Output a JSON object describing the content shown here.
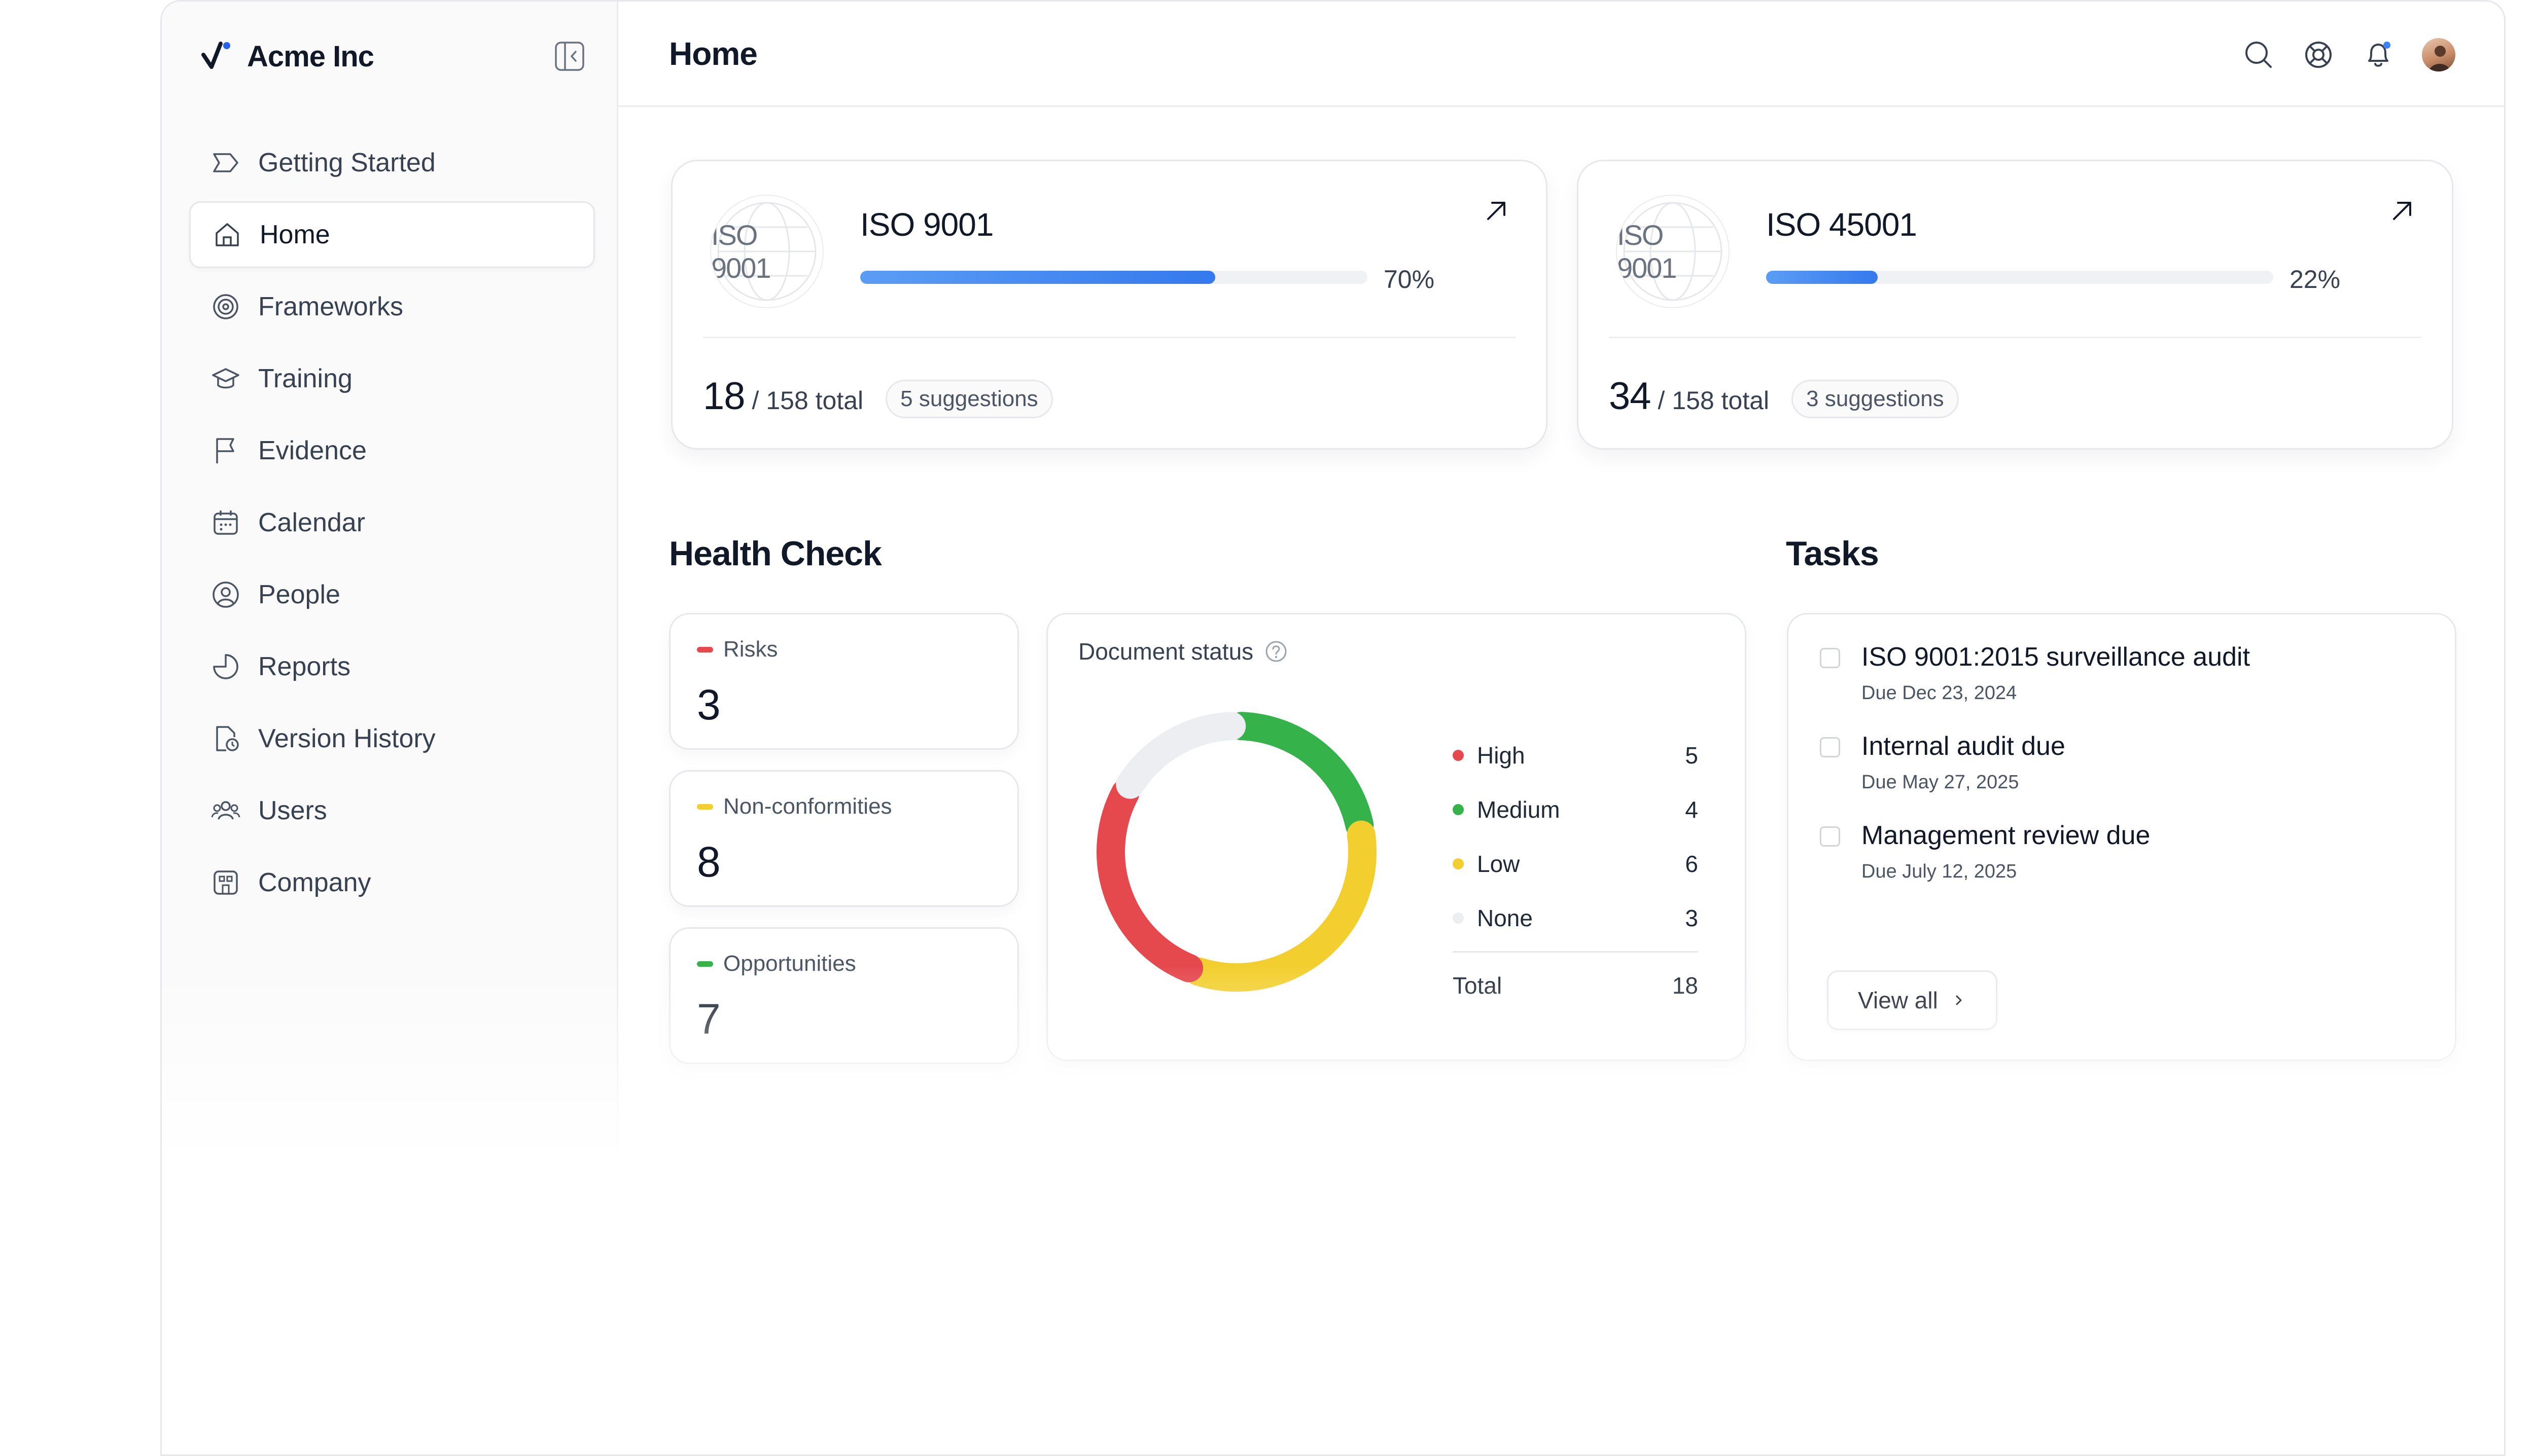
{
  "sidebar": {
    "brand": "Acme Inc",
    "items": [
      {
        "label": "Getting Started",
        "icon": "tag-icon"
      },
      {
        "label": "Home",
        "icon": "home-icon",
        "active": true
      },
      {
        "label": "Frameworks",
        "icon": "frameworks-icon"
      },
      {
        "label": "Training",
        "icon": "graduation-cap-icon"
      },
      {
        "label": "Evidence",
        "icon": "flag-icon"
      },
      {
        "label": "Calendar",
        "icon": "calendar-icon"
      },
      {
        "label": "People",
        "icon": "user-circle-icon"
      },
      {
        "label": "Reports",
        "icon": "pie-chart-icon"
      },
      {
        "label": "Version History",
        "icon": "file-history-icon"
      },
      {
        "label": "Users",
        "icon": "users-icon"
      },
      {
        "label": "Company",
        "icon": "building-icon"
      }
    ]
  },
  "header": {
    "title": "Home",
    "icons": [
      "search-icon",
      "support-icon",
      "bell-icon",
      "avatar"
    ]
  },
  "iso_cards": [
    {
      "name": "ISO 9001",
      "logo_text": "ISO 9001",
      "progress": 0.7,
      "progress_label": "70%",
      "count": "18",
      "total": "/ 158 total",
      "suggestions": "5 suggestions"
    },
    {
      "name": "ISO 45001",
      "logo_text": "ISO 9001",
      "progress": 0.22,
      "progress_label": "22%",
      "count": "34",
      "total": "/ 158 total",
      "suggestions": "3 suggestions"
    }
  ],
  "health_check": {
    "title": "Health Check",
    "metrics": [
      {
        "label": "Risks",
        "value": "3",
        "color": "#e5484d"
      },
      {
        "label": "Non-conformities",
        "value": "8",
        "color": "#f2cf2f"
      },
      {
        "label": "Opportunities",
        "value": "7",
        "color": "#35b24a"
      }
    ]
  },
  "document_status": {
    "title": "Document status",
    "total_label": "Total",
    "total": "18"
  },
  "chart_data": {
    "type": "pie",
    "title": "Document status",
    "categories": [
      "High",
      "Medium",
      "Low",
      "None"
    ],
    "values": [
      5,
      4,
      6,
      3
    ],
    "colors": [
      "#e5484d",
      "#35b24a",
      "#f2cf2f",
      "#eceef1"
    ],
    "donut": true
  },
  "tasks": {
    "title": "Tasks",
    "items": [
      {
        "title": "ISO 9001:2015 surveillance audit",
        "due": "Due Dec 23, 2024"
      },
      {
        "title": "Internal audit due",
        "due": "Due May 27, 2025"
      },
      {
        "title": "Management review due",
        "due": "Due July 12, 2025"
      }
    ],
    "view_all": "View all"
  },
  "colors": {
    "accent_blue": "#3479ee",
    "high": "#e5484d",
    "medium": "#35b24a",
    "low": "#f2cf2f",
    "none": "#eceef1"
  }
}
